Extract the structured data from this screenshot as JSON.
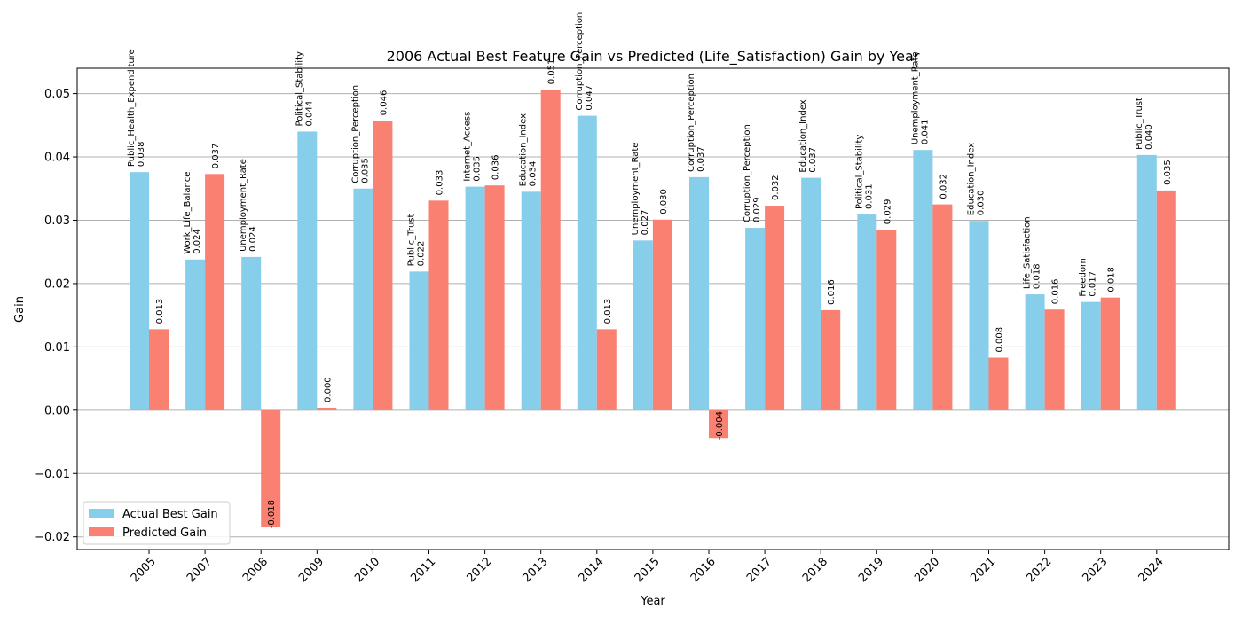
{
  "chart_data": {
    "type": "bar",
    "title": "2006 Actual Best Feature Gain vs Predicted (Life_Satisfaction) Gain by Year",
    "xlabel": "Year",
    "ylabel": "Gain",
    "ylim": [
      -0.022,
      0.054
    ],
    "yticks": [
      -0.02,
      -0.01,
      0.0,
      0.01,
      0.02,
      0.03,
      0.04,
      0.05
    ],
    "ytick_labels": [
      "−0.02",
      "−0.01",
      "0.00",
      "0.01",
      "0.02",
      "0.03",
      "0.04",
      "0.05"
    ],
    "grid": "y",
    "legend_position": "lower-left",
    "categories": [
      "2005",
      "2007",
      "2008",
      "2009",
      "2010",
      "2011",
      "2012",
      "2013",
      "2014",
      "2015",
      "2016",
      "2017",
      "2018",
      "2019",
      "2020",
      "2021",
      "2022",
      "2023",
      "2024"
    ],
    "features": [
      "Public_Health_Expenditure",
      "Work_Life_Balance",
      "Unemployment_Rate",
      "Political_Stability",
      "Corruption_Perception",
      "Public_Trust",
      "Internet_Access",
      "Education_Index",
      "Corruption_Perception",
      "Unemployment_Rate",
      "Corruption_Perception",
      "Corruption_Perception",
      "Education_Index",
      "Political_Stability",
      "Unemployment_Rate",
      "Education_Index",
      "Life_Satisfaction",
      "Freedom",
      "Public_Trust"
    ],
    "series": [
      {
        "name": "Actual Best Gain",
        "color": "#87CEEB",
        "values": [
          0.0376,
          0.0238,
          0.0242,
          0.044,
          0.035,
          0.0219,
          0.0353,
          0.0345,
          0.0465,
          0.0268,
          0.0368,
          0.0288,
          0.0367,
          0.0309,
          0.0411,
          0.0299,
          0.0183,
          0.0171,
          0.0403
        ],
        "labels": [
          "0.038",
          "0.024",
          "0.024",
          "0.044",
          "0.035",
          "0.022",
          "0.035",
          "0.034",
          "0.047",
          "0.027",
          "0.037",
          "0.029",
          "0.037",
          "0.031",
          "0.041",
          "0.030",
          "0.018",
          "0.017",
          "0.040"
        ]
      },
      {
        "name": "Predicted Gain",
        "color": "#FA8072",
        "values": [
          0.0128,
          0.0373,
          -0.0184,
          0.0004,
          0.0457,
          0.0331,
          0.0355,
          0.0506,
          0.0128,
          0.0301,
          -0.0044,
          0.0323,
          0.0158,
          0.0285,
          0.0325,
          0.0083,
          0.0159,
          0.0178,
          0.0347
        ],
        "labels": [
          "0.013",
          "0.037",
          "-0.018",
          "0.000",
          "0.046",
          "0.033",
          "0.036",
          "0.051",
          "0.013",
          "0.030",
          "-0.004",
          "0.032",
          "0.016",
          "0.029",
          "0.032",
          "0.008",
          "0.016",
          "0.018",
          "0.035"
        ]
      }
    ]
  }
}
